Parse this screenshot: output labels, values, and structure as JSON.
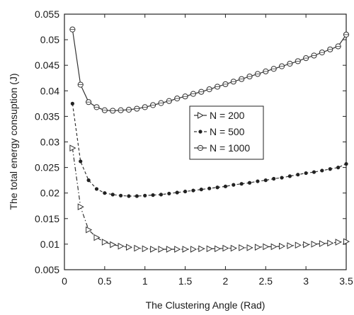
{
  "chart_data": {
    "type": "line",
    "xlabel": "The Clustering Angle (Rad)",
    "ylabel": "The total energy consuption (J)",
    "xlim": [
      0,
      3.5
    ],
    "ylim": [
      0.005,
      0.055
    ],
    "xticks": [
      "0",
      "0.5",
      "1",
      "1.5",
      "2",
      "2.5",
      "3",
      "3.5"
    ],
    "yticks": [
      "0.005",
      "0.01",
      "0.015",
      "0.02",
      "0.025",
      "0.03",
      "0.035",
      "0.04",
      "0.045",
      "0.05",
      "0.055"
    ],
    "grid": false,
    "legend_position": "middle-right",
    "x": [
      0.1,
      0.2,
      0.3,
      0.4,
      0.5,
      0.6,
      0.7,
      0.8,
      0.9,
      1.0,
      1.1,
      1.2,
      1.3,
      1.4,
      1.5,
      1.6,
      1.7,
      1.8,
      1.9,
      2.0,
      2.1,
      2.2,
      2.3,
      2.4,
      2.5,
      2.6,
      2.7,
      2.8,
      2.9,
      3.0,
      3.1,
      3.2,
      3.3,
      3.4,
      3.5
    ],
    "series": [
      {
        "name": "N = 200",
        "marker": "triangle-right",
        "line": "dash-dot",
        "color": "#333333",
        "values": [
          0.0288,
          0.0173,
          0.0128,
          0.0113,
          0.0104,
          0.0099,
          0.0096,
          0.0094,
          0.0092,
          0.0091,
          0.009,
          0.009,
          0.009,
          0.009,
          0.009,
          0.009,
          0.0091,
          0.0091,
          0.0091,
          0.0092,
          0.0092,
          0.0093,
          0.0093,
          0.0094,
          0.0095,
          0.0095,
          0.0096,
          0.0097,
          0.0098,
          0.0099,
          0.01,
          0.0101,
          0.0102,
          0.0104,
          0.0105
        ]
      },
      {
        "name": "N = 500",
        "marker": "dot",
        "line": "dashed",
        "color": "#333333",
        "values": [
          0.0375,
          0.0262,
          0.0225,
          0.0208,
          0.02,
          0.0197,
          0.0195,
          0.0194,
          0.0194,
          0.0195,
          0.0196,
          0.0197,
          0.0199,
          0.0201,
          0.0203,
          0.0205,
          0.0207,
          0.0209,
          0.0211,
          0.0213,
          0.0216,
          0.0218,
          0.022,
          0.0223,
          0.0225,
          0.0228,
          0.023,
          0.0233,
          0.0236,
          0.0239,
          0.0241,
          0.0244,
          0.0247,
          0.025,
          0.0257
        ]
      },
      {
        "name": "N = 1000",
        "marker": "circle-cross",
        "line": "solid",
        "color": "#333333",
        "values": [
          0.052,
          0.0412,
          0.0378,
          0.0368,
          0.0362,
          0.0361,
          0.0362,
          0.0363,
          0.0365,
          0.0368,
          0.0372,
          0.0376,
          0.038,
          0.0385,
          0.0389,
          0.0394,
          0.0398,
          0.0403,
          0.0408,
          0.0413,
          0.0418,
          0.0423,
          0.0428,
          0.0433,
          0.0438,
          0.0443,
          0.0448,
          0.0453,
          0.0458,
          0.0464,
          0.0469,
          0.0475,
          0.0481,
          0.0487,
          0.051
        ]
      }
    ]
  }
}
